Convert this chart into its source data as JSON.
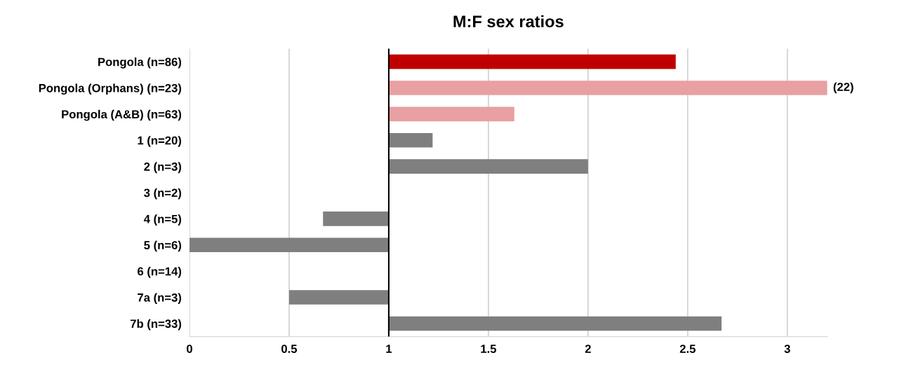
{
  "chart_data": {
    "type": "bar",
    "orientation": "horizontal",
    "title": "M:F sex ratios",
    "categories": [
      "Pongola (n=86)",
      "Pongola (Orphans) (n=23)",
      "Pongola (A&B) (n=63)",
      "1 (n=20)",
      "2 (n=3)",
      "3 (n=2)",
      "4 (n=5)",
      "5 (n=6)",
      "6 (n=14)",
      "7a (n=3)",
      "7b (n=33)"
    ],
    "base": [
      1,
      1,
      1,
      1,
      1,
      null,
      1,
      1,
      null,
      1,
      1
    ],
    "values": [
      1.44,
      21,
      0.63,
      0.22,
      1.0,
      null,
      -0.33,
      -1.0,
      null,
      -0.5,
      1.67
    ],
    "value_labels": [
      null,
      "(22)",
      null,
      null,
      null,
      null,
      null,
      null,
      null,
      null,
      null
    ],
    "colors": [
      "#c00000",
      "#e8a0a2",
      "#e8a0a2",
      "#7f7f7f",
      "#7f7f7f",
      "#7f7f7f",
      "#7f7f7f",
      "#7f7f7f",
      "#7f7f7f",
      "#7f7f7f",
      "#7f7f7f"
    ],
    "xlim": [
      0,
      3.2
    ],
    "xticks": [
      0,
      0.5,
      1,
      1.5,
      2,
      2.5,
      3
    ],
    "ref_lines": [
      {
        "axis": "x",
        "value": 1,
        "label": null,
        "color": "#000000"
      }
    ],
    "grid": "x",
    "legend": false
  }
}
